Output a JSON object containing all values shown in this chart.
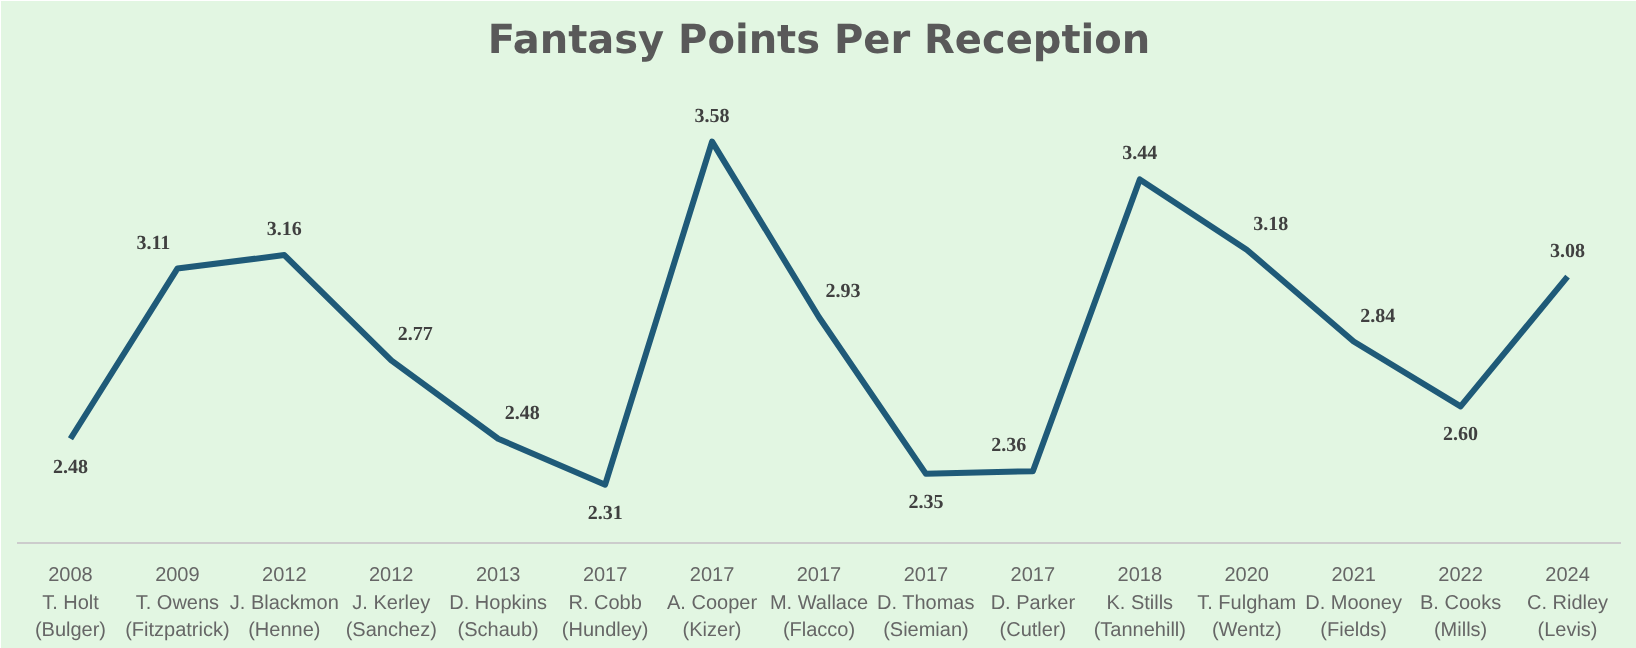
{
  "chart_data": {
    "type": "line",
    "title": "Fantasy Points Per Reception",
    "categories": [
      "2008\nT. Holt\n(Bulger)",
      "2009\nT. Owens\n(Fitzpatrick)",
      "2012\nJ. Blackmon\n(Henne)",
      "2012\nJ. Kerley\n(Sanchez)",
      "2013\nD. Hopkins\n(Schaub)",
      "2017\nR. Cobb\n(Hundley)",
      "2017\nA. Cooper\n(Kizer)",
      "2017\nM. Wallace\n(Flacco)",
      "2017\nD. Thomas\n(Siemian)",
      "2017\nD. Parker\n(Cutler)",
      "2018\nK. Stills\n(Tannehill)",
      "2020\nT. Fulgham\n(Wentz)",
      "2021\nD. Mooney\n(Fields)",
      "2022\nB. Cooks\n(Mills)",
      "2024\nC. Ridley\n(Levis)"
    ],
    "series": [
      {
        "color": "#1f5a78",
        "values": [
          2.48,
          3.11,
          3.16,
          2.77,
          2.48,
          2.31,
          3.58,
          2.93,
          2.35,
          2.36,
          3.44,
          3.18,
          2.84,
          2.6,
          3.08
        ],
        "value_labels": [
          "2.48",
          "3.11",
          "3.16",
          "2.77",
          "2.48",
          "2.31",
          "3.58",
          "2.93",
          "2.35",
          "2.36",
          "3.44",
          "3.18",
          "2.84",
          "2.60",
          "3.08"
        ]
      }
    ],
    "tick_labels": "x",
    "grid": false,
    "marker": "none",
    "line_style": "solid"
  }
}
